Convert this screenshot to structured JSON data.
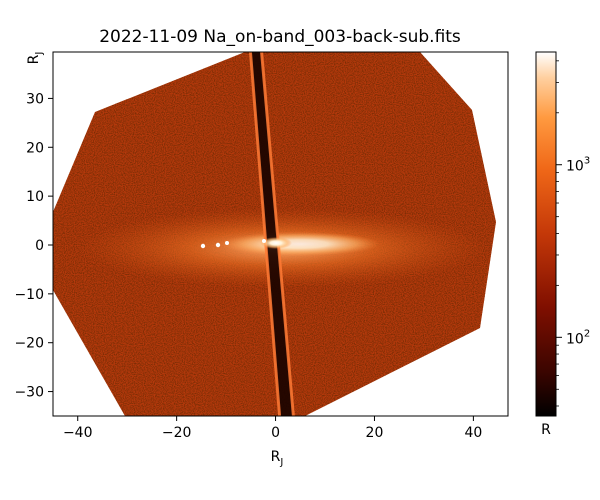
{
  "chart_data": {
    "type": "heatmap",
    "title": "2022-11-09 Na_on-band_003-back-sub.fits",
    "xlabel": "R",
    "xlabel_sub": "J",
    "ylabel": "R",
    "ylabel_sub": "J",
    "xlim": [
      -45,
      47
    ],
    "ylim": [
      -35,
      39.5
    ],
    "x_ticks": [
      -40,
      -20,
      0,
      20,
      40
    ],
    "y_ticks": [
      -30,
      -20,
      -10,
      0,
      10,
      20,
      30
    ],
    "x_tick_labels": [
      "−40",
      "−20",
      "0",
      "20",
      "40"
    ],
    "y_tick_labels": [
      "−30",
      "−20",
      "−10",
      "0",
      "10",
      "20",
      "30"
    ],
    "colorbar": {
      "scale": "log",
      "colormap": "gist_heat",
      "range": [
        35,
        4500
      ],
      "unit": "R",
      "ticks": [
        {
          "value": 100,
          "base": "10",
          "exp": "2"
        },
        {
          "value": 1000,
          "base": "10",
          "exp": "3"
        }
      ]
    },
    "colors": {
      "background": "#b7390c",
      "emission_core": "#ffffff",
      "shadow_stripe": "#1a0300"
    }
  }
}
